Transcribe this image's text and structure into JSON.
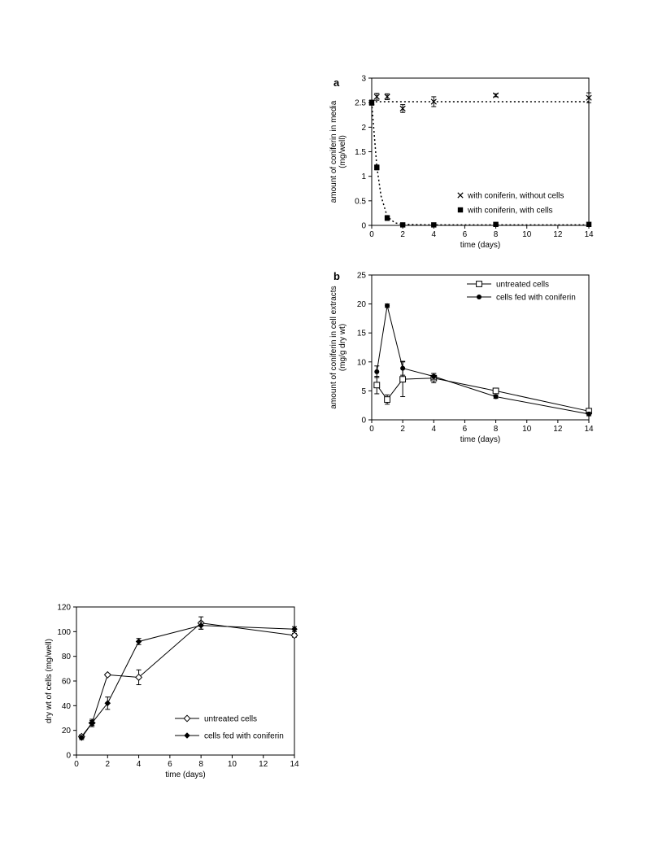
{
  "chart_data": [
    {
      "id": "a",
      "type": "scatter",
      "panel_label": "a",
      "xlabel": "time (days)",
      "ylabel_lines": [
        "amount of coniferin in media",
        "(mg/well)"
      ],
      "xlim": [
        0,
        14
      ],
      "ylim": [
        0,
        3
      ],
      "xticks": [
        0,
        2,
        4,
        6,
        8,
        10,
        12,
        14
      ],
      "yticks": [
        0,
        0.5,
        1,
        1.5,
        2,
        2.5,
        3
      ],
      "legend_position": "lower-right",
      "series": [
        {
          "name": "with coniferin, without cells",
          "marker": "x",
          "x": [
            0,
            0.33,
            1,
            2,
            4,
            8,
            14
          ],
          "y": [
            2.5,
            2.62,
            2.62,
            2.38,
            2.52,
            2.65,
            2.6
          ],
          "err": [
            0.05,
            0.07,
            0.06,
            0.08,
            0.1,
            0.03,
            0.1
          ],
          "fit": {
            "style": "dotted",
            "x": [
              0,
              0.3,
              14
            ],
            "y": [
              2.5,
              2.52,
              2.52
            ]
          }
        },
        {
          "name": "with coniferin, with cells",
          "marker": "filled-square",
          "x": [
            0,
            0.33,
            1,
            2,
            4,
            8,
            14
          ],
          "y": [
            2.5,
            1.18,
            0.15,
            0.01,
            0.01,
            0.02,
            0.02
          ],
          "err": [
            0.05,
            0.05,
            0.05,
            0.01,
            0.01,
            0.01,
            0.01
          ],
          "fit": {
            "style": "dotted",
            "x": [
              0,
              0.15,
              0.33,
              0.6,
              1,
              1.5,
              2,
              4,
              8,
              14
            ],
            "y": [
              2.5,
              1.9,
              1.2,
              0.6,
              0.18,
              0.05,
              0.02,
              0.01,
              0.01,
              0.01
            ]
          }
        }
      ]
    },
    {
      "id": "b",
      "type": "line",
      "panel_label": "b",
      "xlabel": "time (days)",
      "ylabel_lines": [
        "amount of coniferin in cell extracts",
        "(mg/g dry wt)"
      ],
      "xlim": [
        0,
        14
      ],
      "ylim": [
        0,
        25
      ],
      "xticks": [
        0,
        2,
        4,
        6,
        8,
        10,
        12,
        14
      ],
      "yticks": [
        0,
        5,
        10,
        15,
        20,
        25
      ],
      "legend_position": "top-right",
      "series": [
        {
          "name": "untreated cells",
          "marker": "open-square",
          "x": [
            0.33,
            1,
            2,
            4,
            8,
            14
          ],
          "y": [
            6,
            3.5,
            7,
            7.2,
            5,
            1.5
          ],
          "err": [
            1.5,
            0.8,
            3,
            0.8,
            0.4,
            0.4
          ]
        },
        {
          "name": "cells fed with coniferin",
          "marker": "filled-circle",
          "x": [
            0.33,
            1,
            2,
            4,
            8,
            14
          ],
          "y": [
            8.3,
            19.7,
            8.9,
            7.5,
            4,
            1
          ],
          "err": [
            1,
            0.3,
            1.2,
            0.5,
            0.3,
            0.3
          ]
        }
      ]
    },
    {
      "id": "c",
      "type": "line",
      "panel_label": "",
      "xlabel": "time (days)",
      "ylabel_lines": [
        "dry wt of cells (mg/well)"
      ],
      "xlim": [
        0,
        14
      ],
      "ylim": [
        0,
        120
      ],
      "xticks": [
        0,
        2,
        4,
        6,
        8,
        10,
        12,
        14
      ],
      "yticks": [
        0,
        20,
        40,
        60,
        80,
        100,
        120
      ],
      "legend_position": "lower-right",
      "series": [
        {
          "name": "untreated cells",
          "marker": "open-diamond",
          "x": [
            0.33,
            1,
            2,
            4,
            8,
            14
          ],
          "y": [
            15,
            26,
            65,
            63,
            107,
            97
          ],
          "err": [
            1.5,
            3,
            1,
            6,
            5,
            1.5
          ]
        },
        {
          "name": "cells fed with coniferin",
          "marker": "filled-diamond",
          "x": [
            0.33,
            1,
            2,
            4,
            8,
            14
          ],
          "y": [
            14,
            26,
            42,
            92,
            105,
            102
          ],
          "err": [
            1.5,
            2,
            5,
            2.5,
            3,
            2
          ]
        }
      ]
    }
  ]
}
